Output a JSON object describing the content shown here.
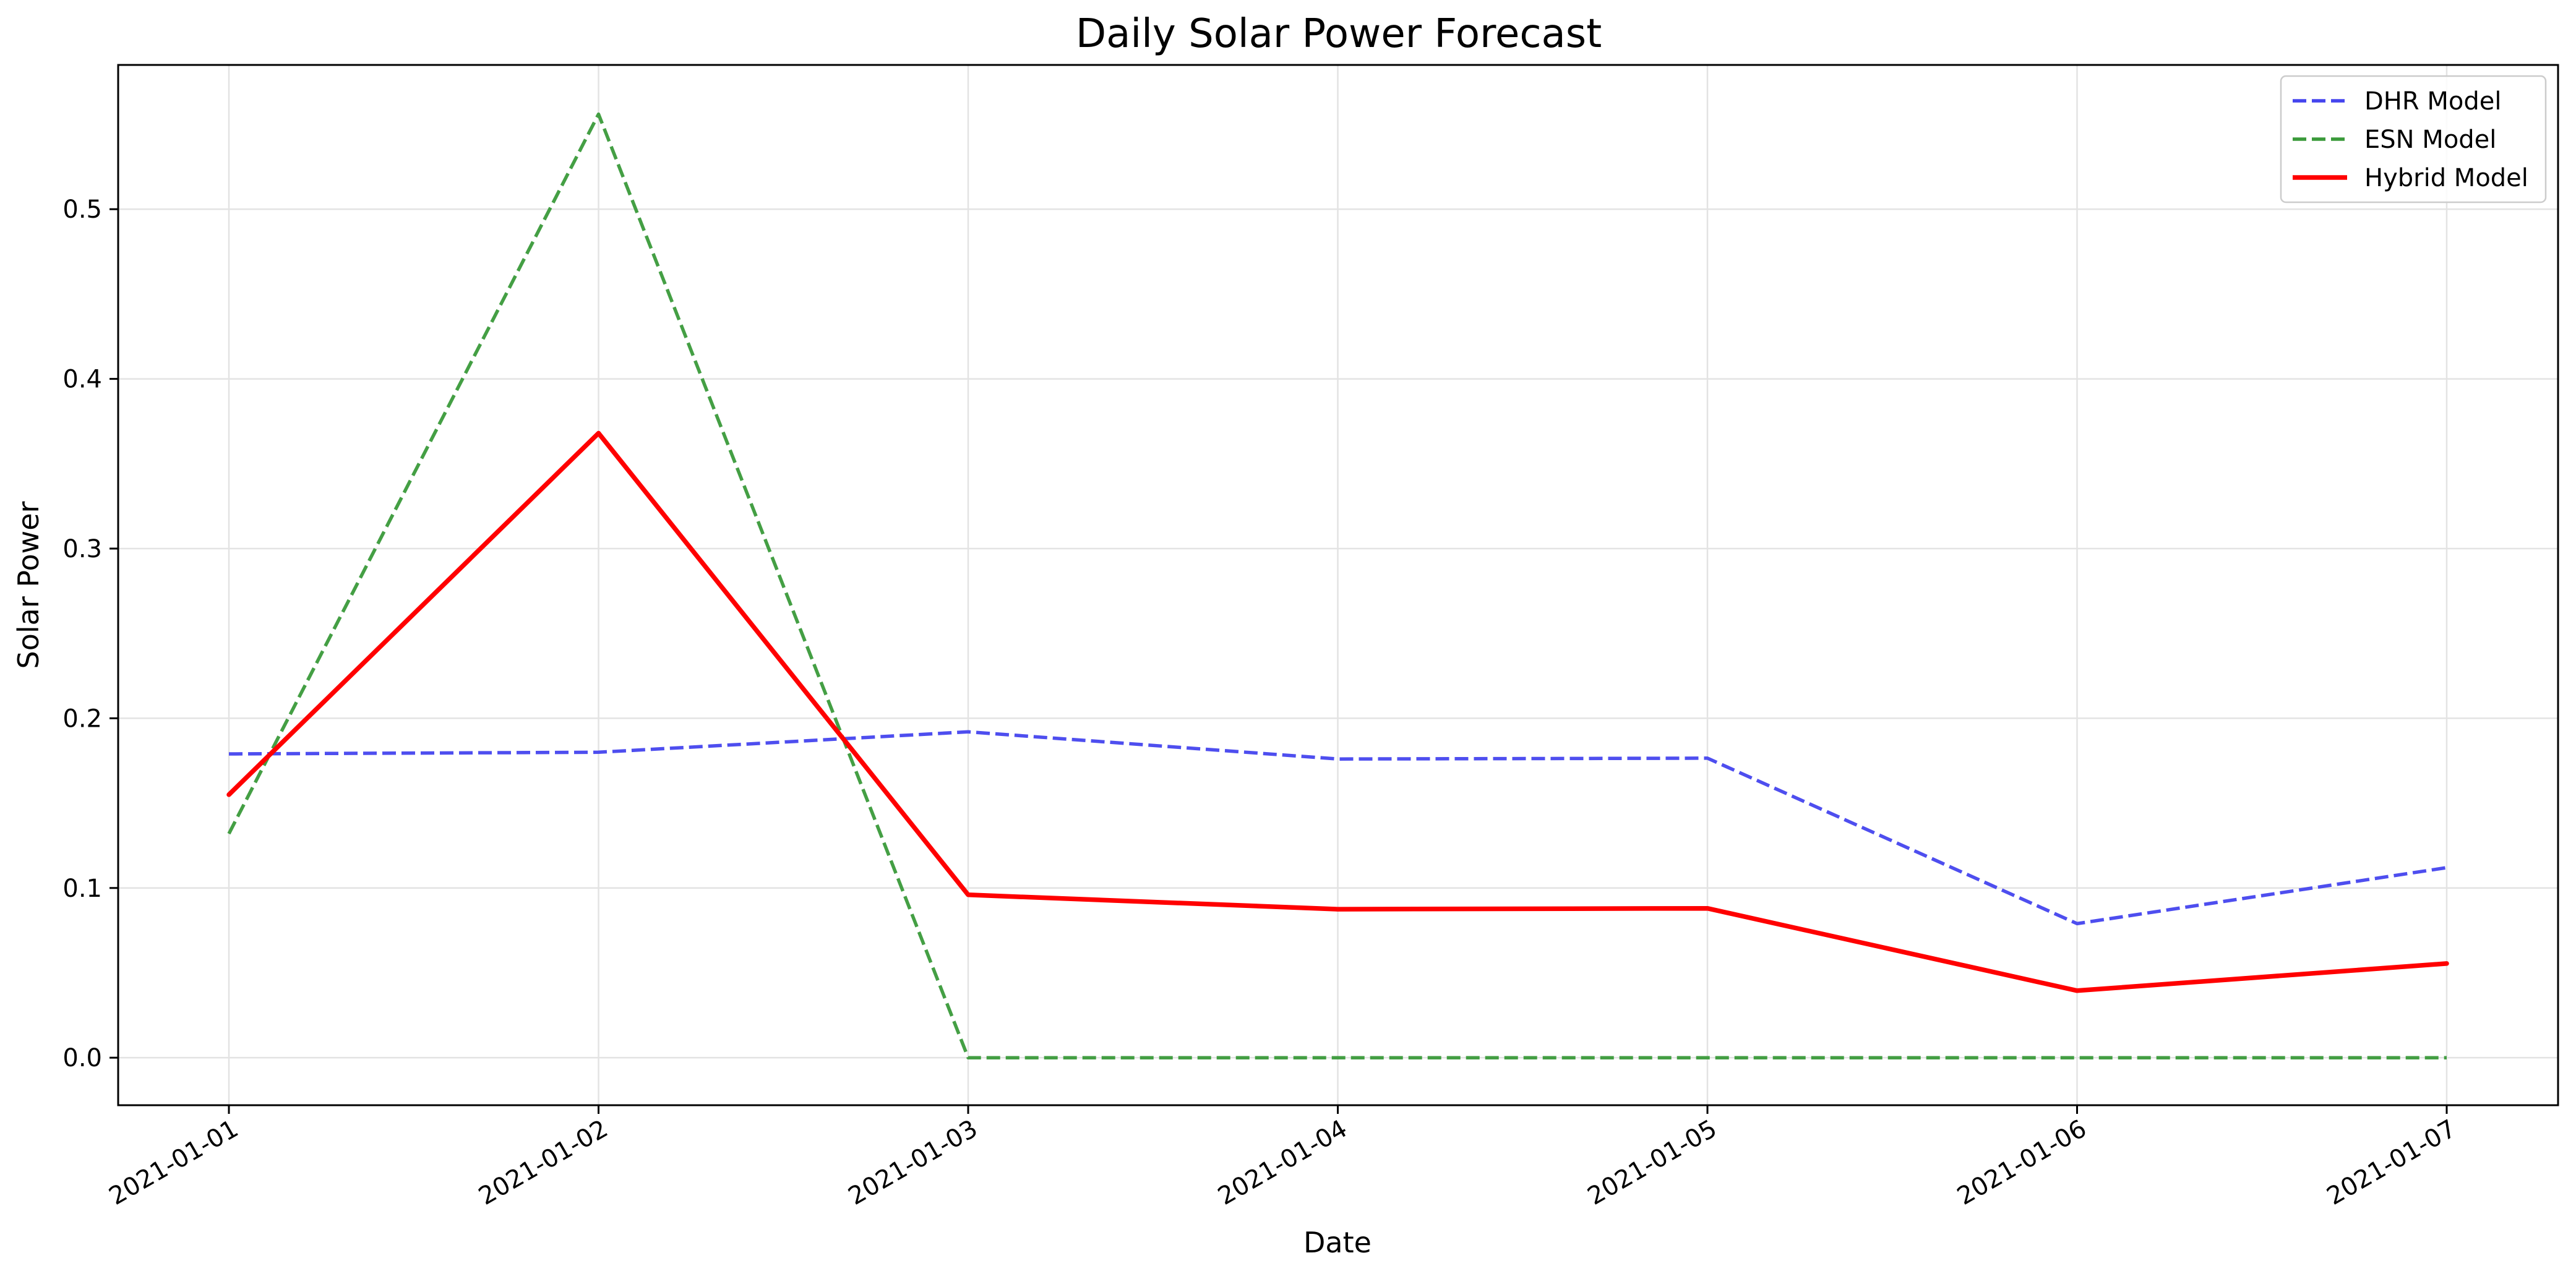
{
  "chart_data": {
    "type": "line",
    "title": "Daily Solar Power Forecast",
    "xlabel": "Date",
    "ylabel": "Solar Power",
    "x": [
      "2021-01-01",
      "2021-01-02",
      "2021-01-03",
      "2021-01-04",
      "2021-01-05",
      "2021-01-06",
      "2021-01-07"
    ],
    "ylim": [
      -0.028,
      0.585
    ],
    "yticks": [
      "0.0",
      "0.1",
      "0.2",
      "0.3",
      "0.4",
      "0.5"
    ],
    "grid": true,
    "legend_position": "top-right",
    "series": [
      {
        "name": "DHR Model",
        "color": "#4444ee",
        "style": "dashed",
        "values": [
          0.179,
          0.18,
          0.192,
          0.176,
          0.1765,
          0.079,
          0.112
        ]
      },
      {
        "name": "ESN Model",
        "color": "#3a9a3a",
        "style": "dashed",
        "values": [
          0.132,
          0.556,
          0.0,
          0.0,
          0.0,
          0.0,
          0.0
        ]
      },
      {
        "name": "Hybrid Model",
        "color": "#ff0000",
        "style": "solid",
        "values": [
          0.155,
          0.368,
          0.096,
          0.0875,
          0.088,
          0.0395,
          0.0555
        ]
      }
    ]
  }
}
